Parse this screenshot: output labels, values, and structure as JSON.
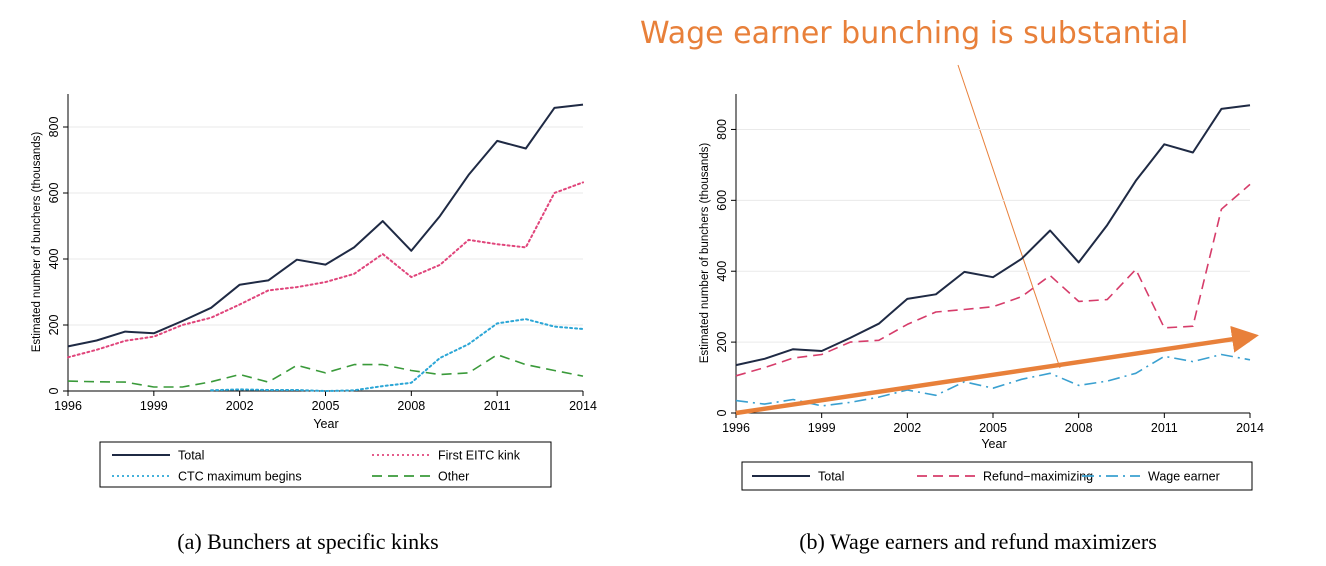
{
  "annotation": {
    "text": "Wage earner bunching is substantial",
    "color": "#e8803a"
  },
  "chart_data": [
    {
      "type": "line",
      "caption": "(a) Bunchers at specific kinks",
      "xlabel": "Year",
      "ylabel": "Estimated number of bunchers (thousands)",
      "xlim": [
        1996,
        2014
      ],
      "ylim": [
        0,
        900
      ],
      "xticks": [
        1996,
        1999,
        2002,
        2005,
        2008,
        2011,
        2014
      ],
      "yticks": [
        0,
        200,
        400,
        600,
        800
      ],
      "x": [
        1996,
        1997,
        1998,
        1999,
        2000,
        2001,
        2002,
        2003,
        2004,
        2005,
        2006,
        2007,
        2008,
        2009,
        2010,
        2011,
        2012,
        2013,
        2014
      ],
      "legend_position": "bottom",
      "series": [
        {
          "name": "Total",
          "style": "solid",
          "color": "#1f2a44",
          "values": [
            135,
            153,
            180,
            175,
            212,
            252,
            322,
            335,
            398,
            383,
            435,
            515,
            425,
            530,
            655,
            758,
            735,
            858,
            868
          ]
        },
        {
          "name": "First EITC kink",
          "style": "dotted",
          "color": "#e0457b",
          "values": [
            102,
            125,
            152,
            165,
            200,
            222,
            262,
            305,
            315,
            330,
            355,
            415,
            345,
            382,
            458,
            445,
            435,
            600,
            632
          ]
        },
        {
          "name": "CTC maximum begins",
          "style": "dotted",
          "color": "#2ba6d6",
          "values": [
            null,
            null,
            null,
            null,
            null,
            2,
            5,
            3,
            3,
            0,
            2,
            15,
            25,
            100,
            142,
            205,
            218,
            195,
            188
          ]
        },
        {
          "name": "Other",
          "style": "dashed",
          "color": "#3a9a3a",
          "values": [
            30,
            28,
            27,
            12,
            12,
            28,
            50,
            27,
            78,
            55,
            80,
            80,
            62,
            50,
            55,
            110,
            80,
            62,
            45
          ]
        }
      ]
    },
    {
      "type": "line",
      "caption": "(b) Wage earners and refund maximizers",
      "xlabel": "Year",
      "ylabel": "Estimated number of bunchers (thousands)",
      "xlim": [
        1996,
        2014
      ],
      "ylim": [
        0,
        900
      ],
      "xticks": [
        1996,
        1999,
        2002,
        2005,
        2008,
        2011,
        2014
      ],
      "yticks": [
        0,
        200,
        400,
        600,
        800
      ],
      "x": [
        1996,
        1997,
        1998,
        1999,
        2000,
        2001,
        2002,
        2003,
        2004,
        2005,
        2006,
        2007,
        2008,
        2009,
        2010,
        2011,
        2012,
        2013,
        2014
      ],
      "legend_position": "bottom",
      "series": [
        {
          "name": "Total",
          "style": "solid",
          "color": "#1f2a44",
          "values": [
            135,
            153,
            180,
            175,
            212,
            252,
            322,
            335,
            398,
            383,
            435,
            515,
            425,
            530,
            655,
            758,
            735,
            858,
            868
          ]
        },
        {
          "name": "Refund−maximizing",
          "style": "dashed",
          "color": "#d63c6a",
          "values": [
            105,
            128,
            155,
            165,
            200,
            205,
            250,
            285,
            292,
            300,
            328,
            388,
            315,
            320,
            405,
            240,
            245,
            575,
            645
          ]
        },
        {
          "name": "Wage earner",
          "style": "dashdot",
          "color": "#3aa0d0",
          "values": [
            35,
            25,
            38,
            20,
            30,
            45,
            65,
            50,
            88,
            70,
            95,
            112,
            78,
            90,
            112,
            160,
            145,
            165,
            150
          ]
        }
      ],
      "trend_arrow": {
        "from": [
          1996,
          0
        ],
        "to": [
          2014,
          215
        ],
        "color": "#e8803a"
      }
    }
  ]
}
